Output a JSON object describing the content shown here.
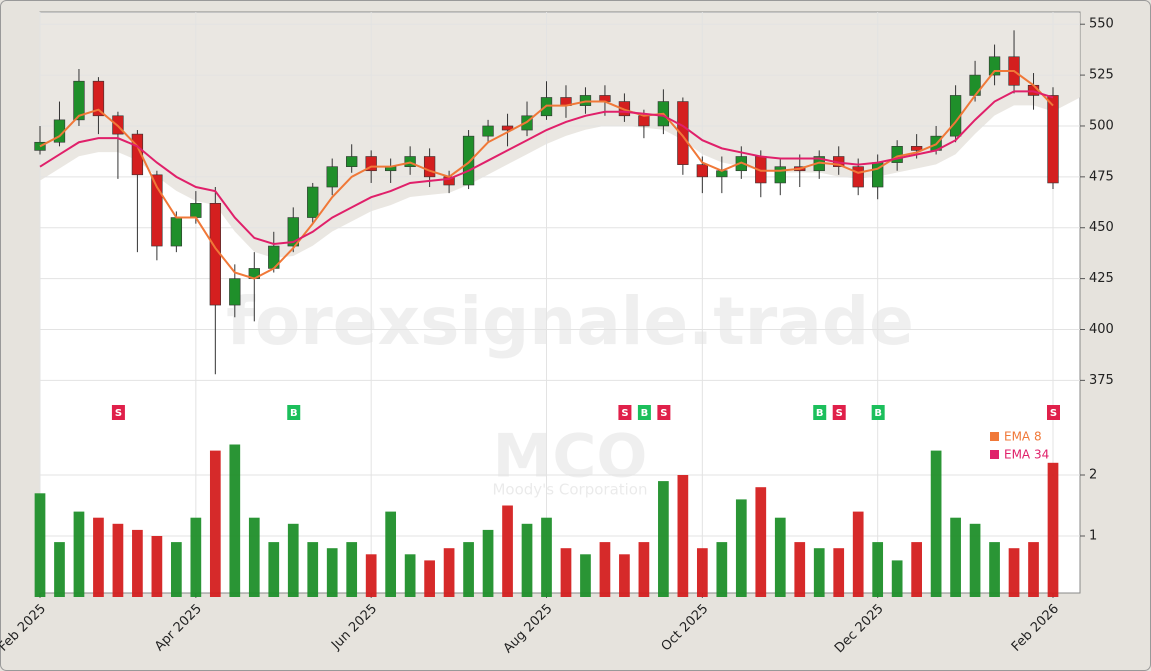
{
  "chart_data": {
    "type": "candlestick",
    "watermark": "forexsignale.trade",
    "symbol": "MCO",
    "company": "Moody's Corporation",
    "categories": [
      "Feb 2025",
      null,
      null,
      null,
      null,
      null,
      null,
      null,
      "Apr 2025",
      null,
      null,
      null,
      null,
      null,
      null,
      null,
      null,
      "Jun 2025",
      null,
      null,
      null,
      null,
      null,
      null,
      null,
      null,
      "Aug 2025",
      null,
      null,
      null,
      null,
      null,
      null,
      null,
      "Oct 2025",
      null,
      null,
      null,
      null,
      null,
      null,
      null,
      null,
      "Dec 2025",
      null,
      null,
      null,
      null,
      null,
      null,
      null,
      null,
      "Feb 2026"
    ],
    "open": [
      488,
      492,
      503,
      522,
      505,
      496,
      476,
      441,
      455,
      462,
      412,
      425,
      430,
      441,
      455,
      470,
      480,
      485,
      478,
      480,
      485,
      475,
      471,
      495,
      500,
      498,
      505,
      514,
      510,
      515,
      512,
      505,
      500,
      512,
      481,
      475,
      478,
      485,
      472,
      480,
      478,
      485,
      480,
      470,
      482,
      490,
      488,
      495,
      515,
      525,
      534,
      520,
      515
    ],
    "high": [
      500,
      512,
      528,
      524,
      507,
      498,
      478,
      458,
      468,
      470,
      432,
      438,
      448,
      460,
      472,
      484,
      491,
      488,
      484,
      490,
      489,
      478,
      498,
      503,
      506,
      512,
      522,
      520,
      519,
      520,
      516,
      508,
      518,
      514,
      485,
      485,
      490,
      488,
      484,
      486,
      488,
      490,
      484,
      486,
      493,
      496,
      500,
      520,
      532,
      540,
      547,
      526,
      519
    ],
    "low": [
      486,
      490,
      500,
      496,
      474,
      438,
      434,
      438,
      452,
      378,
      406,
      404,
      428,
      438,
      452,
      466,
      477,
      472,
      472,
      476,
      470,
      467,
      469,
      492,
      490,
      495,
      503,
      504,
      506,
      505,
      502,
      494,
      496,
      476,
      467,
      467,
      474,
      465,
      466,
      470,
      474,
      476,
      466,
      464,
      478,
      484,
      486,
      492,
      512,
      520,
      516,
      508,
      469
    ],
    "close": [
      492,
      503,
      522,
      505,
      496,
      476,
      441,
      455,
      462,
      412,
      425,
      430,
      441,
      455,
      470,
      480,
      485,
      478,
      480,
      485,
      475,
      471,
      495,
      500,
      498,
      505,
      514,
      510,
      515,
      512,
      505,
      500,
      512,
      481,
      475,
      478,
      485,
      472,
      480,
      478,
      485,
      480,
      470,
      482,
      490,
      488,
      495,
      515,
      525,
      534,
      520,
      515,
      472
    ],
    "volume": [
      1.7,
      0.9,
      1.4,
      1.3,
      1.2,
      1.1,
      1.0,
      0.9,
      1.3,
      2.4,
      2.5,
      1.3,
      0.9,
      1.2,
      0.9,
      0.8,
      0.9,
      0.7,
      1.4,
      0.7,
      0.6,
      0.8,
      0.9,
      1.1,
      1.5,
      1.2,
      1.3,
      0.8,
      0.7,
      0.9,
      0.7,
      0.9,
      1.9,
      2.0,
      0.8,
      0.9,
      1.6,
      1.8,
      1.3,
      0.9,
      0.8,
      0.8,
      1.4,
      0.9,
      0.6,
      0.9,
      2.4,
      1.3,
      1.2,
      0.9,
      0.8,
      0.9,
      2.2
    ],
    "volume_ticks": [
      1,
      2
    ],
    "volume_lim": [
      0,
      3.1
    ],
    "up_color": "#1f8f2a",
    "down_color": "#d41f1f",
    "series": [
      {
        "name": "EMA 8",
        "color": "#f07838",
        "values": [
          490,
          495,
          505,
          508,
          500,
          490,
          470,
          455,
          455,
          440,
          428,
          425,
          430,
          440,
          452,
          465,
          475,
          480,
          480,
          482,
          478,
          475,
          482,
          492,
          497,
          502,
          510,
          510,
          512,
          512,
          508,
          505,
          506,
          495,
          482,
          478,
          482,
          478,
          478,
          479,
          482,
          481,
          477,
          479,
          485,
          487,
          491,
          502,
          515,
          527,
          527,
          520,
          510
        ]
      },
      {
        "name": "EMA 34",
        "color": "#e0206a",
        "values": [
          480,
          486,
          492,
          494,
          494,
          490,
          482,
          475,
          470,
          468,
          455,
          445,
          442,
          443,
          448,
          455,
          460,
          465,
          468,
          472,
          473,
          474,
          478,
          483,
          488,
          493,
          498,
          502,
          505,
          507,
          507,
          506,
          505,
          500,
          493,
          489,
          487,
          485,
          484,
          484,
          484,
          482,
          481,
          482,
          484,
          486,
          488,
          493,
          503,
          512,
          517,
          517,
          514
        ]
      }
    ],
    "signals": [
      null,
      null,
      null,
      null,
      "S",
      null,
      null,
      null,
      null,
      null,
      null,
      null,
      null,
      "B",
      null,
      null,
      null,
      null,
      null,
      null,
      null,
      null,
      null,
      null,
      null,
      null,
      null,
      null,
      null,
      null,
      "S",
      "B",
      "S",
      null,
      null,
      null,
      null,
      null,
      null,
      null,
      "B",
      "S",
      null,
      "B",
      null,
      null,
      null,
      null,
      null,
      null,
      null,
      null,
      "S"
    ],
    "ylim": [
      357,
      556
    ],
    "yticks": [
      375,
      400,
      425,
      450,
      475,
      500,
      525,
      550
    ],
    "grid": true
  }
}
